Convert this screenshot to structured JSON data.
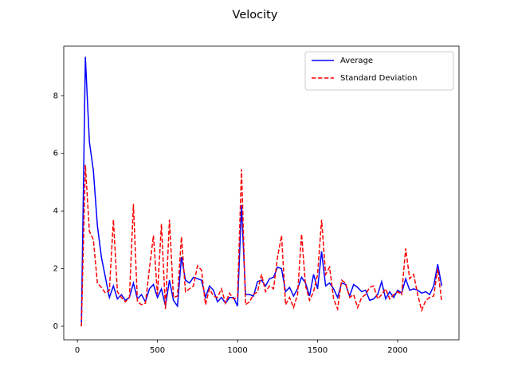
{
  "chart_data": {
    "type": "line",
    "title": "Velocity",
    "x": [
      25,
      50,
      75,
      100,
      125,
      150,
      175,
      200,
      225,
      250,
      275,
      300,
      325,
      350,
      375,
      400,
      425,
      450,
      475,
      500,
      525,
      550,
      575,
      600,
      625,
      650,
      675,
      700,
      725,
      750,
      775,
      800,
      825,
      850,
      875,
      900,
      925,
      950,
      975,
      1000,
      1025,
      1050,
      1075,
      1100,
      1125,
      1150,
      1175,
      1200,
      1225,
      1250,
      1275,
      1300,
      1325,
      1350,
      1375,
      1400,
      1425,
      1450,
      1475,
      1500,
      1525,
      1550,
      1575,
      1600,
      1625,
      1650,
      1675,
      1700,
      1725,
      1750,
      1775,
      1800,
      1825,
      1850,
      1875,
      1900,
      1925,
      1950,
      1975,
      2000,
      2025,
      2050,
      2075,
      2100,
      2125,
      2150,
      2175,
      2200,
      2225,
      2250,
      2275
    ],
    "series": [
      {
        "name": "Average",
        "color": "#0000ff",
        "dash": false,
        "values": [
          0,
          9.35,
          6.4,
          5.4,
          3.5,
          2.4,
          1.7,
          1.0,
          1.4,
          0.95,
          1.1,
          0.9,
          1.0,
          1.5,
          0.95,
          1.1,
          0.85,
          1.3,
          1.45,
          1.0,
          1.3,
          0.7,
          1.6,
          0.9,
          0.7,
          2.4,
          1.6,
          1.5,
          1.7,
          1.65,
          1.6,
          1.0,
          1.4,
          1.25,
          0.85,
          1.0,
          0.8,
          1.0,
          1.0,
          0.7,
          4.2,
          1.1,
          1.1,
          1.05,
          1.55,
          1.6,
          1.4,
          1.65,
          1.7,
          2.05,
          2.0,
          1.2,
          1.35,
          1.05,
          1.3,
          1.7,
          1.5,
          1.05,
          1.8,
          1.3,
          2.6,
          1.4,
          1.5,
          1.3,
          1.0,
          1.5,
          1.45,
          1.05,
          1.45,
          1.35,
          1.2,
          1.25,
          0.9,
          0.95,
          1.1,
          1.55,
          0.95,
          1.2,
          1.0,
          1.25,
          1.15,
          1.65,
          1.25,
          1.3,
          1.25,
          1.15,
          1.2,
          1.1,
          1.4,
          2.15,
          1.4
        ]
      },
      {
        "name": "Standard Deviation",
        "color": "#ff0000",
        "dash": true,
        "values": [
          0,
          5.6,
          3.3,
          3.0,
          1.5,
          1.35,
          1.15,
          1.25,
          3.7,
          1.2,
          1.0,
          0.85,
          1.0,
          4.25,
          0.85,
          0.75,
          0.8,
          2.0,
          3.15,
          1.1,
          3.55,
          0.6,
          3.7,
          1.0,
          1.05,
          3.1,
          1.2,
          1.3,
          1.4,
          2.1,
          1.95,
          0.75,
          1.3,
          1.05,
          1.0,
          1.3,
          0.8,
          1.15,
          0.95,
          1.0,
          5.45,
          0.75,
          0.85,
          1.1,
          1.2,
          1.8,
          1.2,
          1.4,
          1.3,
          2.4,
          3.15,
          0.75,
          1.0,
          0.65,
          1.1,
          3.2,
          1.4,
          0.9,
          1.2,
          1.8,
          3.7,
          1.8,
          2.05,
          0.95,
          0.6,
          1.6,
          1.5,
          1.0,
          1.1,
          0.65,
          1.0,
          1.1,
          1.35,
          1.4,
          0.95,
          1.1,
          1.3,
          0.95,
          1.1,
          1.2,
          1.1,
          2.7,
          1.65,
          1.8,
          1.1,
          0.55,
          0.9,
          1.0,
          1.05,
          2.0,
          0.85
        ]
      }
    ],
    "xlim": [
      -85,
      2383
    ],
    "ylim": [
      -0.47,
      9.72
    ],
    "xticks": [
      0,
      500,
      1000,
      1500,
      2000
    ],
    "yticks": [
      0,
      2,
      4,
      6,
      8
    ],
    "legend": "upper right"
  }
}
